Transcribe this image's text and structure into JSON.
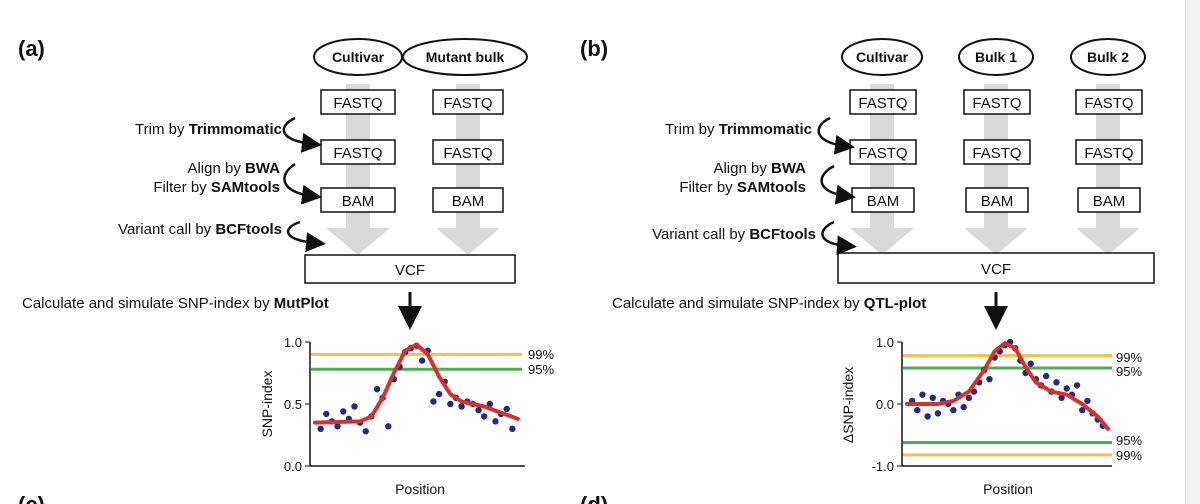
{
  "panel_a": {
    "label": "(a)",
    "samples": [
      "Cultivar",
      "Mutant bulk"
    ],
    "file_fastq": "FASTQ",
    "file_bam": "BAM",
    "vcf": "VCF",
    "steps": {
      "trim_prefix": "Trim by ",
      "trim_tool": "Trimmomatic",
      "align_prefix": "Align by ",
      "align_tool": "BWA",
      "filter_prefix": "Filter by ",
      "filter_tool": "SAMtools",
      "variant_prefix": "Variant call by ",
      "variant_tool": "BCFtools",
      "calc_prefix": "Calculate and simulate SNP-index by ",
      "calc_tool": "MutPlot"
    },
    "chart": {
      "ylabel": "SNP-index",
      "xlabel": "Position",
      "yticks": [
        "0.0",
        "0.5",
        "1.0"
      ],
      "thresholds": [
        {
          "label": "99%",
          "value": 0.9,
          "color": "#f0c24a"
        },
        {
          "label": "95%",
          "value": 0.78,
          "color": "#4caf50"
        }
      ]
    }
  },
  "panel_b": {
    "label": "(b)",
    "samples": [
      "Cultivar",
      "Bulk 1",
      "Bulk 2"
    ],
    "file_fastq": "FASTQ",
    "file_bam": "BAM",
    "vcf": "VCF",
    "steps": {
      "trim_prefix": "Trim by ",
      "trim_tool": "Trimmomatic",
      "align_prefix": "Align by ",
      "align_tool": "BWA",
      "filter_prefix": "Filter by ",
      "filter_tool": "SAMtools",
      "variant_prefix": "Variant call by ",
      "variant_tool": "BCFtools",
      "calc_prefix": "Calculate and simulate SNP-index by ",
      "calc_tool": "QTL-plot"
    },
    "chart": {
      "ylabel": "ΔSNP-index",
      "xlabel": "Position",
      "yticks": [
        "-1.0",
        "0.0",
        "1.0"
      ],
      "thresholds": [
        {
          "label": "99%",
          "value": 0.78,
          "color": "#f0c24a"
        },
        {
          "label": "95%",
          "value": 0.58,
          "color": "#4caf50"
        },
        {
          "label": "95%",
          "value": -0.62,
          "color": "#4caf50"
        },
        {
          "label": "99%",
          "value": -0.82,
          "color": "#f0c24a"
        }
      ]
    }
  },
  "next_panels": [
    "(c)",
    "(d)"
  ],
  "colors": {
    "dot": "#1f2a8a",
    "curve": "#d8312b",
    "arrow": "#d9d9d9"
  },
  "chart_data": [
    {
      "type": "scatter",
      "ylabel": "SNP-index",
      "xlabel": "Position",
      "ylim": [
        0,
        1
      ],
      "points": [
        [
          1,
          0.3
        ],
        [
          2,
          0.42
        ],
        [
          3,
          0.36
        ],
        [
          4,
          0.32
        ],
        [
          5,
          0.44
        ],
        [
          6,
          0.38
        ],
        [
          7,
          0.48
        ],
        [
          8,
          0.35
        ],
        [
          9,
          0.28
        ],
        [
          10,
          0.4
        ],
        [
          11,
          0.62
        ],
        [
          12,
          0.55
        ],
        [
          13,
          0.32
        ],
        [
          14,
          0.7
        ],
        [
          15,
          0.8
        ],
        [
          16,
          0.92
        ],
        [
          17,
          0.95
        ],
        [
          18,
          0.97
        ],
        [
          19,
          0.85
        ],
        [
          20,
          0.93
        ],
        [
          21,
          0.52
        ],
        [
          22,
          0.58
        ],
        [
          23,
          0.68
        ],
        [
          24,
          0.5
        ],
        [
          25,
          0.55
        ],
        [
          26,
          0.48
        ],
        [
          27,
          0.52
        ],
        [
          28,
          0.5
        ],
        [
          29,
          0.45
        ],
        [
          30,
          0.4
        ],
        [
          31,
          0.5
        ],
        [
          32,
          0.36
        ],
        [
          33,
          0.42
        ],
        [
          34,
          0.46
        ],
        [
          35,
          0.3
        ]
      ],
      "curve": [
        [
          0,
          0.35
        ],
        [
          8,
          0.36
        ],
        [
          10,
          0.4
        ],
        [
          12,
          0.55
        ],
        [
          14,
          0.75
        ],
        [
          16,
          0.93
        ],
        [
          18,
          0.98
        ],
        [
          20,
          0.9
        ],
        [
          22,
          0.72
        ],
        [
          24,
          0.58
        ],
        [
          26,
          0.52
        ],
        [
          30,
          0.48
        ],
        [
          33,
          0.43
        ],
        [
          36,
          0.38
        ]
      ],
      "thresholds": {
        "99%": 0.9,
        "95%": 0.78
      }
    },
    {
      "type": "scatter",
      "ylabel": "ΔSNP-index",
      "xlabel": "Position",
      "ylim": [
        -1,
        1
      ],
      "points": [
        [
          1,
          0.05
        ],
        [
          2,
          -0.1
        ],
        [
          3,
          0.15
        ],
        [
          4,
          -0.2
        ],
        [
          5,
          0.1
        ],
        [
          6,
          -0.15
        ],
        [
          7,
          0.05
        ],
        [
          8,
          0.0
        ],
        [
          9,
          -0.1
        ],
        [
          10,
          0.15
        ],
        [
          11,
          -0.05
        ],
        [
          12,
          0.1
        ],
        [
          13,
          0.2
        ],
        [
          14,
          0.35
        ],
        [
          15,
          0.55
        ],
        [
          16,
          0.4
        ],
        [
          17,
          0.75
        ],
        [
          18,
          0.85
        ],
        [
          19,
          0.95
        ],
        [
          20,
          1.0
        ],
        [
          21,
          0.9
        ],
        [
          22,
          0.7
        ],
        [
          23,
          0.5
        ],
        [
          24,
          0.65
        ],
        [
          25,
          0.4
        ],
        [
          26,
          0.3
        ],
        [
          27,
          0.45
        ],
        [
          28,
          0.2
        ],
        [
          29,
          0.35
        ],
        [
          30,
          0.1
        ],
        [
          31,
          0.25
        ],
        [
          32,
          0.15
        ],
        [
          33,
          0.3
        ],
        [
          34,
          -0.1
        ],
        [
          35,
          0.05
        ],
        [
          36,
          -0.15
        ],
        [
          37,
          -0.25
        ],
        [
          38,
          -0.35
        ]
      ],
      "curve": [
        [
          0,
          0.0
        ],
        [
          6,
          0.0
        ],
        [
          9,
          0.05
        ],
        [
          12,
          0.2
        ],
        [
          15,
          0.55
        ],
        [
          17,
          0.85
        ],
        [
          19,
          0.98
        ],
        [
          21,
          0.9
        ],
        [
          23,
          0.6
        ],
        [
          25,
          0.35
        ],
        [
          28,
          0.2
        ],
        [
          31,
          0.15
        ],
        [
          34,
          0.0
        ],
        [
          37,
          -0.2
        ],
        [
          39,
          -0.4
        ]
      ],
      "thresholds": {
        "99%": [
          0.78,
          -0.82
        ],
        "95%": [
          0.58,
          -0.62
        ]
      }
    }
  ]
}
